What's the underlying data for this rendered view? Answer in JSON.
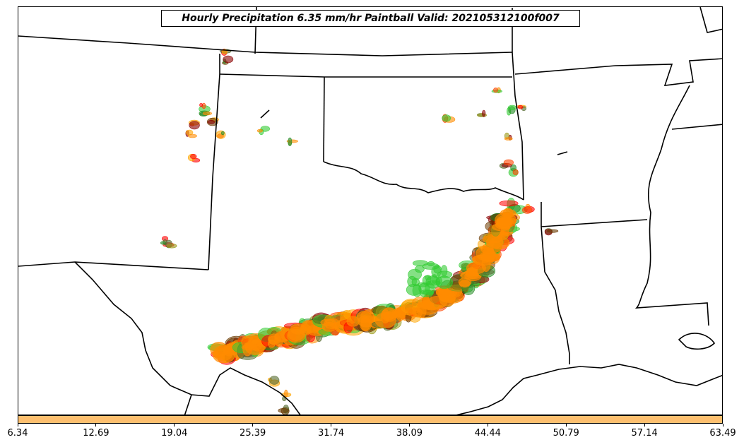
{
  "title": "Hourly Precipitation 6.35 mm/hr Paintball Valid: 202105312100f007",
  "colorbar": {
    "color": "#fdbf6f",
    "ticks": [
      "6.34",
      "12.69",
      "19.04",
      "25.39",
      "31.74",
      "38.09",
      "44.44",
      "50.79",
      "57.14",
      "63.49"
    ]
  },
  "member_colors": [
    "#33cc33",
    "#228b22",
    "#9a9a1a",
    "#6b3a00",
    "#8b0000",
    "#ff0000",
    "#ff4500",
    "#ff8c00",
    "#ffa500",
    "#556b2f"
  ],
  "map": {
    "region": "Southern Plains (Texas, Oklahoma, Arkansas, Louisiana)",
    "boundaries": "state-lines"
  }
}
